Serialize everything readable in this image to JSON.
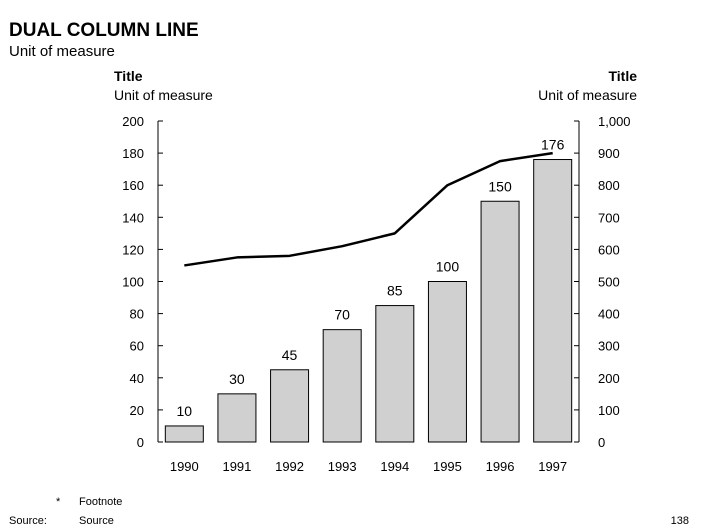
{
  "header": {
    "title": "DUAL COLUMN LINE",
    "subtitle": "Unit of measure"
  },
  "chart_data": {
    "type": "bar",
    "categories": [
      "1990",
      "1991",
      "1992",
      "1993",
      "1994",
      "1995",
      "1996",
      "1997"
    ],
    "series": [
      {
        "type": "bar",
        "axis": "left",
        "values": [
          10,
          30,
          45,
          70,
          85,
          100,
          150,
          176
        ],
        "data_labels": [
          "10",
          "30",
          "45",
          "70",
          "85",
          "100",
          "150",
          "176"
        ]
      },
      {
        "type": "line",
        "axis": "right",
        "values": [
          550,
          575,
          580,
          610,
          650,
          800,
          875,
          900
        ]
      }
    ],
    "left_axis": {
      "title": "Title",
      "unit": "Unit of measure",
      "ylim": [
        0,
        200
      ],
      "ticks": [
        "0",
        "20",
        "40",
        "60",
        "80",
        "100",
        "120",
        "140",
        "160",
        "180",
        "200"
      ]
    },
    "right_axis": {
      "title": "Title",
      "unit": "Unit of measure",
      "ylim": [
        0,
        1000
      ],
      "ticks": [
        "0",
        "100",
        "200",
        "300",
        "400",
        "500",
        "600",
        "700",
        "800",
        "900",
        "1,000"
      ]
    },
    "grid": false,
    "legend": "none",
    "colors": {
      "bar_fill": "#d0d0d0",
      "bar_stroke": "#000000",
      "line": "#000000",
      "axis": "#000000"
    }
  },
  "footer": {
    "footnote_mark": "*",
    "footnote_text": "Footnote",
    "source_label": "Source:",
    "source_text": "Source",
    "page_number": "138"
  }
}
